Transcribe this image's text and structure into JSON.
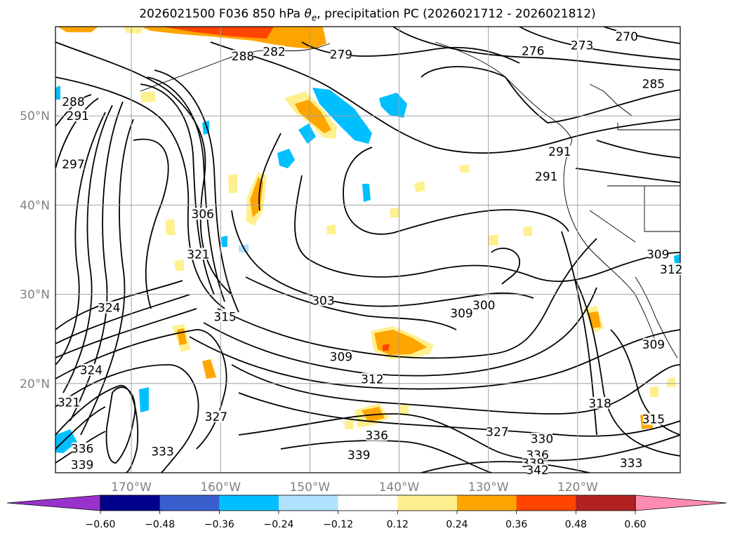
{
  "title": {
    "run": "2026021500",
    "forecast": "F036",
    "level": "850 hPa",
    "theta": "θ",
    "theta_sub": "e",
    "rest": ", precipitation PC (2026021712 - 2026021812)"
  },
  "axes": {
    "lon_labels": [
      "170°W",
      "160°W",
      "150°W",
      "140°W",
      "130°W",
      "120°W"
    ],
    "lon_values": [
      -170,
      -160,
      -150,
      -140,
      -130,
      -120
    ],
    "lat_labels": [
      "50°N",
      "40°N",
      "30°N",
      "20°N"
    ],
    "lat_values": [
      50,
      40,
      30,
      20
    ],
    "lon_range": [
      -178.5,
      -108.5
    ],
    "lat_range": [
      10,
      60
    ],
    "grid": true
  },
  "contour_labels": [
    {
      "text": "270",
      "lon": -114.5,
      "lat": 58.9
    },
    {
      "text": "273",
      "lon": -119.5,
      "lat": 57.9
    },
    {
      "text": "276",
      "lon": -125.0,
      "lat": 57.3
    },
    {
      "text": "279",
      "lon": -146.5,
      "lat": 56.9
    },
    {
      "text": "282",
      "lon": -154.0,
      "lat": 57.2
    },
    {
      "text": "288",
      "lon": -157.5,
      "lat": 56.7
    },
    {
      "text": "285",
      "lon": -111.5,
      "lat": 53.6
    },
    {
      "text": "288",
      "lon": -176.5,
      "lat": 51.6
    },
    {
      "text": "291",
      "lon": -176.0,
      "lat": 50.0
    },
    {
      "text": "297",
      "lon": -176.5,
      "lat": 44.6
    },
    {
      "text": "306",
      "lon": -162.0,
      "lat": 39.0
    },
    {
      "text": "291",
      "lon": -122.0,
      "lat": 46.0
    },
    {
      "text": "291",
      "lon": -123.5,
      "lat": 43.2
    },
    {
      "text": "309",
      "lon": -111.0,
      "lat": 34.5
    },
    {
      "text": "312",
      "lon": -109.5,
      "lat": 32.8
    },
    {
      "text": "321",
      "lon": -162.5,
      "lat": 34.5
    },
    {
      "text": "324",
      "lon": -172.5,
      "lat": 28.5
    },
    {
      "text": "315",
      "lon": -159.5,
      "lat": 27.5
    },
    {
      "text": "303",
      "lon": -148.5,
      "lat": 29.3
    },
    {
      "text": "300",
      "lon": -130.5,
      "lat": 28.8
    },
    {
      "text": "309",
      "lon": -133.0,
      "lat": 27.9
    },
    {
      "text": "309",
      "lon": -146.5,
      "lat": 23.0
    },
    {
      "text": "312",
      "lon": -143.0,
      "lat": 20.5
    },
    {
      "text": "309",
      "lon": -111.5,
      "lat": 24.4
    },
    {
      "text": "324",
      "lon": -174.5,
      "lat": 21.5
    },
    {
      "text": "321",
      "lon": -177.0,
      "lat": 17.9
    },
    {
      "text": "327",
      "lon": -160.5,
      "lat": 16.3
    },
    {
      "text": "318",
      "lon": -117.5,
      "lat": 17.8
    },
    {
      "text": "315",
      "lon": -111.5,
      "lat": 16.0
    },
    {
      "text": "327",
      "lon": -129.0,
      "lat": 14.6
    },
    {
      "text": "336",
      "lon": -142.5,
      "lat": 14.2
    },
    {
      "text": "330",
      "lon": -124.0,
      "lat": 13.8
    },
    {
      "text": "336",
      "lon": -124.5,
      "lat": 12.0
    },
    {
      "text": "339",
      "lon": -144.5,
      "lat": 12.0
    },
    {
      "text": "339",
      "lon": -125.0,
      "lat": 11.1
    },
    {
      "text": "342",
      "lon": -124.5,
      "lat": 10.3
    },
    {
      "text": "333",
      "lon": -166.5,
      "lat": 12.4
    },
    {
      "text": "333",
      "lon": -114.0,
      "lat": 11.1
    },
    {
      "text": "336",
      "lon": -175.5,
      "lat": 12.7
    },
    {
      "text": "339",
      "lon": -175.5,
      "lat": 10.9
    }
  ],
  "colorbar": {
    "tick_labels": [
      "−0.60",
      "−0.48",
      "−0.36",
      "−0.24",
      "−0.12",
      "0.12",
      "0.24",
      "0.36",
      "0.48",
      "0.60"
    ],
    "colors": [
      "#9932cc",
      "#00008b",
      "#3a5fcd",
      "#00bfff",
      "#b0e2ff",
      "#ffffff",
      "#fff08f",
      "#ffa500",
      "#ff4500",
      "#b22222",
      "#ff8cb0"
    ]
  },
  "precip_colors": {
    "yellow": "#fff08f",
    "orange": "#ffa500",
    "red": "#ff4500",
    "lightblue": "#b0e2ff",
    "blue": "#00bfff"
  }
}
